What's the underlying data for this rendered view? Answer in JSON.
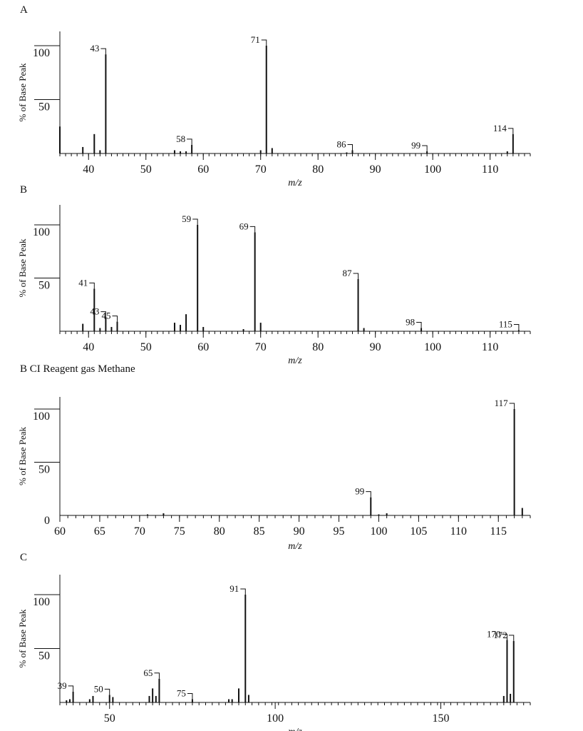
{
  "chart_data": [
    {
      "type": "bar",
      "panel_label": "A",
      "xlabel": "m/z",
      "ylabel": "% of Base Peak",
      "xlim": [
        35,
        117
      ],
      "ylim": [
        0,
        120
      ],
      "xticks": [
        40,
        50,
        60,
        70,
        80,
        90,
        100,
        110
      ],
      "yticks": [
        {
          "value": 100,
          "label": "100"
        },
        {
          "value": 50,
          "label": "50"
        }
      ],
      "peaks": [
        {
          "x": 35,
          "y": 25
        },
        {
          "x": 39,
          "y": 6
        },
        {
          "x": 41,
          "y": 18
        },
        {
          "x": 42,
          "y": 3
        },
        {
          "x": 43,
          "y": 92,
          "label": "43"
        },
        {
          "x": 55,
          "y": 3
        },
        {
          "x": 56,
          "y": 2
        },
        {
          "x": 57,
          "y": 2
        },
        {
          "x": 58,
          "y": 8,
          "label": "58"
        },
        {
          "x": 70,
          "y": 3
        },
        {
          "x": 71,
          "y": 100,
          "label": "71"
        },
        {
          "x": 72,
          "y": 5
        },
        {
          "x": 85,
          "y": 1
        },
        {
          "x": 86,
          "y": 3,
          "label": "86"
        },
        {
          "x": 99,
          "y": 2,
          "label": "99"
        },
        {
          "x": 113,
          "y": 2
        },
        {
          "x": 114,
          "y": 18,
          "label": "114"
        }
      ]
    },
    {
      "type": "bar",
      "panel_label": "B",
      "xlabel": "m/z",
      "ylabel": "% of Base Peak",
      "xlim": [
        35,
        117
      ],
      "ylim": [
        0,
        120
      ],
      "xticks": [
        40,
        50,
        60,
        70,
        80,
        90,
        100,
        110
      ],
      "yticks": [
        {
          "value": 100,
          "label": "100"
        },
        {
          "value": 50,
          "label": "50"
        }
      ],
      "peaks": [
        {
          "x": 39,
          "y": 7
        },
        {
          "x": 41,
          "y": 40,
          "label": "41"
        },
        {
          "x": 42,
          "y": 3
        },
        {
          "x": 43,
          "y": 13,
          "label": "43"
        },
        {
          "x": 44,
          "y": 4
        },
        {
          "x": 45,
          "y": 9,
          "label": "45"
        },
        {
          "x": 55,
          "y": 8
        },
        {
          "x": 56,
          "y": 6
        },
        {
          "x": 57,
          "y": 16
        },
        {
          "x": 59,
          "y": 100,
          "label": "59"
        },
        {
          "x": 60,
          "y": 4
        },
        {
          "x": 67,
          "y": 2
        },
        {
          "x": 69,
          "y": 93,
          "label": "69"
        },
        {
          "x": 70,
          "y": 8
        },
        {
          "x": 87,
          "y": 49,
          "label": "87"
        },
        {
          "x": 88,
          "y": 3
        },
        {
          "x": 98,
          "y": 3,
          "label": "98"
        },
        {
          "x": 115,
          "y": 1,
          "label": "115"
        }
      ]
    },
    {
      "type": "bar",
      "panel_label": "B CI Reagent gas Methane",
      "xlabel": "m/z",
      "ylabel": "% of Base Peak",
      "xlim": [
        60,
        119
      ],
      "ylim": [
        0,
        120
      ],
      "xticks": [
        60,
        65,
        70,
        75,
        80,
        85,
        90,
        95,
        100,
        105,
        110,
        115
      ],
      "yticks": [
        {
          "value": 100,
          "label": "100"
        },
        {
          "value": 50,
          "label": "50"
        },
        {
          "value": 0,
          "label": "0"
        }
      ],
      "peaks": [
        {
          "x": 71,
          "y": 1
        },
        {
          "x": 73,
          "y": 2
        },
        {
          "x": 99,
          "y": 17,
          "label": "99"
        },
        {
          "x": 100,
          "y": 1
        },
        {
          "x": 101,
          "y": 2
        },
        {
          "x": 117,
          "y": 100,
          "label": "117"
        },
        {
          "x": 118,
          "y": 7
        }
      ]
    },
    {
      "type": "bar",
      "panel_label": "C",
      "xlabel": "m/z",
      "ylabel": "% of Base Peak",
      "xlim": [
        35,
        177
      ],
      "ylim": [
        0,
        120
      ],
      "xticks": [
        50,
        100,
        150
      ],
      "yticks": [
        {
          "value": 100,
          "label": "100"
        },
        {
          "value": 50,
          "label": "50"
        }
      ],
      "peaks": [
        {
          "x": 37,
          "y": 2
        },
        {
          "x": 38,
          "y": 3
        },
        {
          "x": 39,
          "y": 10,
          "label": "39"
        },
        {
          "x": 44,
          "y": 3
        },
        {
          "x": 45,
          "y": 6
        },
        {
          "x": 50,
          "y": 7,
          "label": "50"
        },
        {
          "x": 51,
          "y": 5
        },
        {
          "x": 62,
          "y": 6
        },
        {
          "x": 63,
          "y": 13
        },
        {
          "x": 64,
          "y": 6
        },
        {
          "x": 65,
          "y": 22,
          "label": "65"
        },
        {
          "x": 75,
          "y": 3,
          "label": "75"
        },
        {
          "x": 86,
          "y": 3
        },
        {
          "x": 87,
          "y": 3
        },
        {
          "x": 89,
          "y": 13
        },
        {
          "x": 91,
          "y": 100,
          "label": "91"
        },
        {
          "x": 92,
          "y": 7
        },
        {
          "x": 169,
          "y": 6
        },
        {
          "x": 170,
          "y": 58,
          "label": "170"
        },
        {
          "x": 171,
          "y": 8
        },
        {
          "x": 172,
          "y": 57,
          "label": "172"
        }
      ]
    }
  ]
}
